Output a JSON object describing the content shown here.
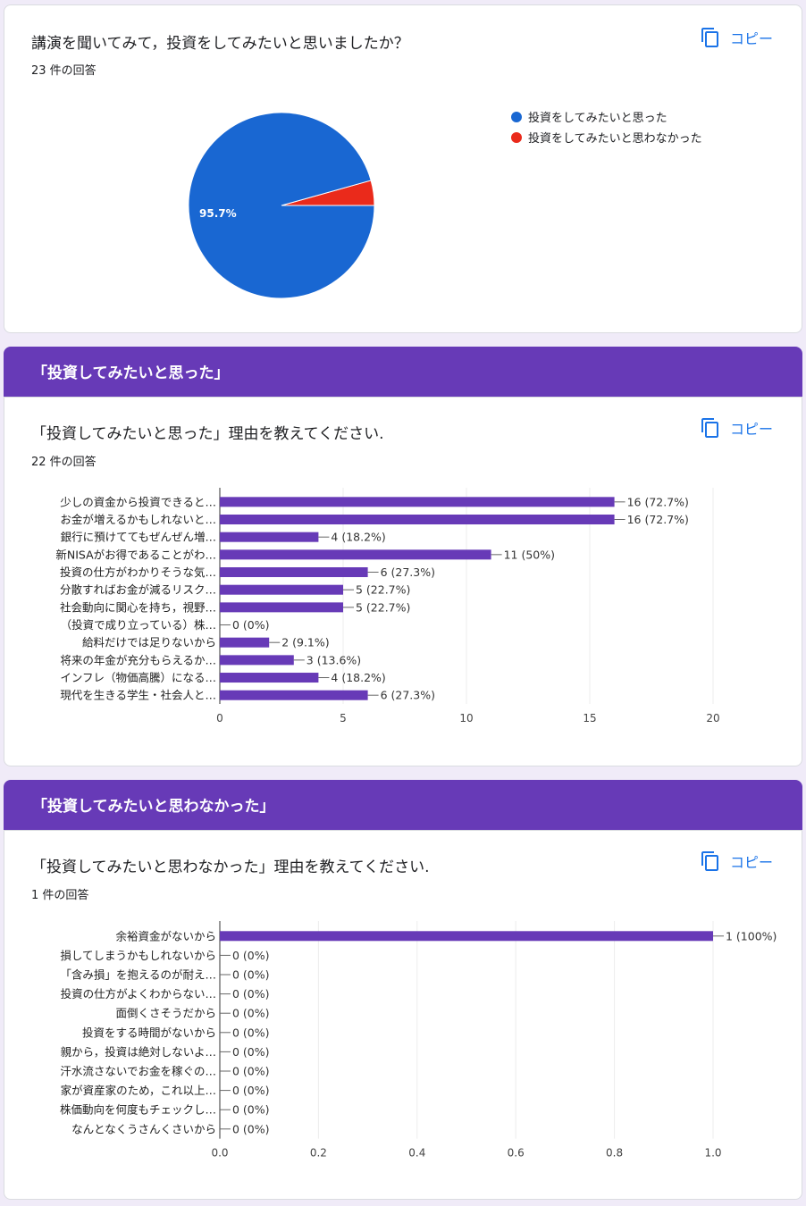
{
  "copy_label": "コピー",
  "colors": {
    "accent": "#1a73e8",
    "purple": "#673ab7",
    "bar": "#673ab7",
    "pie_blue": "#1967d2",
    "pie_red": "#e52592"
  },
  "q1": {
    "title": "講演を聞いてみて，投資をしてみたいと思いましたか？",
    "count": "23 件の回答"
  },
  "section2": {
    "title": "「投資してみたいと思った」"
  },
  "q2": {
    "title": "「投資してみたいと思った」理由を教えてください.",
    "count": "22 件の回答"
  },
  "section3": {
    "title": "「投資してみたいと思わなかった」"
  },
  "q3": {
    "title": "「投資してみたいと思わなかった」理由を教えてください.",
    "count": "1 件の回答"
  },
  "chart_data": [
    {
      "type": "pie",
      "title": "講演を聞いてみて，投資をしてみたいと思いましたか？",
      "legend": "right",
      "slices": [
        {
          "label": "投資をしてみたいと思った",
          "value": 22,
          "percent_label": "95.7%",
          "color": "#1967d2"
        },
        {
          "label": "投資をしてみたいと思わなかった",
          "value": 1,
          "percent_label": "",
          "color": "#ea2a1b"
        }
      ]
    },
    {
      "type": "bar",
      "orientation": "horizontal",
      "title": "「投資してみたいと思った」理由を教えてください.",
      "categories": [
        "少しの資金から投資できると…",
        "お金が増えるかもしれないと…",
        "銀行に預けててもぜんぜん増…",
        "新NISAがお得であることがわ…",
        "投資の仕方がわかりそうな気…",
        "分散すればお金が減るリスク…",
        "社会動向に関心を持ち，視野…",
        "（投資で成り立っている）株…",
        "給料だけでは足りないから",
        "将来の年金が充分もらえるか…",
        "インフレ（物価高騰）になる…",
        "現代を生きる学生・社会人と…"
      ],
      "values": [
        16,
        16,
        4,
        11,
        6,
        5,
        5,
        0,
        2,
        3,
        4,
        6
      ],
      "value_labels": [
        "16 (72.7%)",
        "16 (72.7%)",
        "4 (18.2%)",
        "11 (50%)",
        "6 (27.3%)",
        "5 (22.7%)",
        "5 (22.7%)",
        "0 (0%)",
        "2 (9.1%)",
        "3 (13.6%)",
        "4 (18.2%)",
        "6 (27.3%)"
      ],
      "xlim": [
        0,
        20
      ],
      "ticks": [
        "0",
        "5",
        "10",
        "15",
        "20"
      ],
      "grid": true
    },
    {
      "type": "bar",
      "orientation": "horizontal",
      "title": "「投資してみたいと思わなかった」理由を教えてください.",
      "categories": [
        "余裕資金がないから",
        "損してしまうかもしれないから",
        "「含み損」を抱えるのが耐え…",
        "投資の仕方がよくわからない…",
        "面倒くさそうだから",
        "投資をする時間がないから",
        "親から，投資は絶対しないよ…",
        "汗水流さないでお金を稼ぐの…",
        "家が資産家のため，これ以上…",
        "株価動向を何度もチェックし…",
        "なんとなくうさんくさいから"
      ],
      "values": [
        1,
        0,
        0,
        0,
        0,
        0,
        0,
        0,
        0,
        0,
        0
      ],
      "value_labels": [
        "1 (100%)",
        "0 (0%)",
        "0 (0%)",
        "0 (0%)",
        "0 (0%)",
        "0 (0%)",
        "0 (0%)",
        "0 (0%)",
        "0 (0%)",
        "0 (0%)",
        "0 (0%)"
      ],
      "xlim": [
        0,
        1
      ],
      "ticks": [
        "0.0",
        "0.2",
        "0.4",
        "0.6",
        "0.8",
        "1.0"
      ],
      "grid": true
    }
  ]
}
